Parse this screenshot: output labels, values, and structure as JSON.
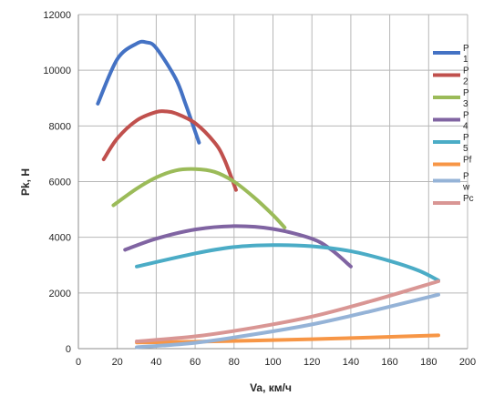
{
  "chart_data": {
    "type": "line",
    "xlabel": "Va, км/ч",
    "ylabel": "Pk, Н",
    "xlim": [
      0,
      200
    ],
    "ylim": [
      0,
      12000
    ],
    "x_ticks": [
      "0",
      "20",
      "40",
      "60",
      "80",
      "100",
      "120",
      "140",
      "160",
      "180",
      "200"
    ],
    "y_ticks": [
      "0",
      "2000",
      "4000",
      "6000",
      "8000",
      "10000",
      "12000"
    ],
    "grid": true,
    "legend_position": "right",
    "series": [
      {
        "name": "P1",
        "legend_lines": [
          "P",
          "1"
        ],
        "color": "#4472c4",
        "x": [
          10,
          20,
          30,
          35,
          40,
          50,
          55,
          60,
          62
        ],
        "y": [
          8800,
          10400,
          10960,
          11000,
          10800,
          9700,
          8800,
          7800,
          7400
        ]
      },
      {
        "name": "P2",
        "legend_lines": [
          "P",
          "2"
        ],
        "color": "#c0504d",
        "x": [
          13,
          20,
          30,
          40,
          45,
          50,
          60,
          70,
          75,
          81
        ],
        "y": [
          6800,
          7550,
          8200,
          8500,
          8520,
          8450,
          8100,
          7400,
          6800,
          5700
        ]
      },
      {
        "name": "P3",
        "legend_lines": [
          "P",
          "3"
        ],
        "color": "#9bbb59",
        "x": [
          18,
          30,
          40,
          50,
          60,
          70,
          80,
          90,
          100,
          106
        ],
        "y": [
          5150,
          5750,
          6150,
          6400,
          6450,
          6350,
          6000,
          5450,
          4800,
          4350
        ]
      },
      {
        "name": "P4",
        "legend_lines": [
          "P",
          "4"
        ],
        "color": "#8064a2",
        "x": [
          24,
          40,
          60,
          80,
          100,
          120,
          130,
          140
        ],
        "y": [
          3550,
          3950,
          4280,
          4400,
          4300,
          3950,
          3550,
          2950
        ]
      },
      {
        "name": "P5",
        "legend_lines": [
          "P",
          "5"
        ],
        "color": "#4bacc6",
        "x": [
          30,
          60,
          80,
          100,
          120,
          140,
          160,
          175,
          185
        ],
        "y": [
          2950,
          3420,
          3650,
          3720,
          3680,
          3500,
          3150,
          2800,
          2450
        ]
      },
      {
        "name": "Pf",
        "legend_lines": [
          "Pf"
        ],
        "color": "#f79646",
        "x": [
          30,
          60,
          90,
          120,
          150,
          185
        ],
        "y": [
          220,
          250,
          290,
          340,
          400,
          480
        ]
      },
      {
        "name": "Pw",
        "legend_lines": [
          "P",
          "w"
        ],
        "color": "#95b3d7",
        "x": [
          30,
          60,
          90,
          120,
          150,
          185
        ],
        "y": [
          50,
          210,
          510,
          870,
          1340,
          1940
        ]
      },
      {
        "name": "Pc",
        "legend_lines": [
          "Pc"
        ],
        "color": "#d99694",
        "x": [
          30,
          60,
          90,
          120,
          150,
          185
        ],
        "y": [
          260,
          440,
          750,
          1150,
          1700,
          2420
        ]
      }
    ]
  }
}
